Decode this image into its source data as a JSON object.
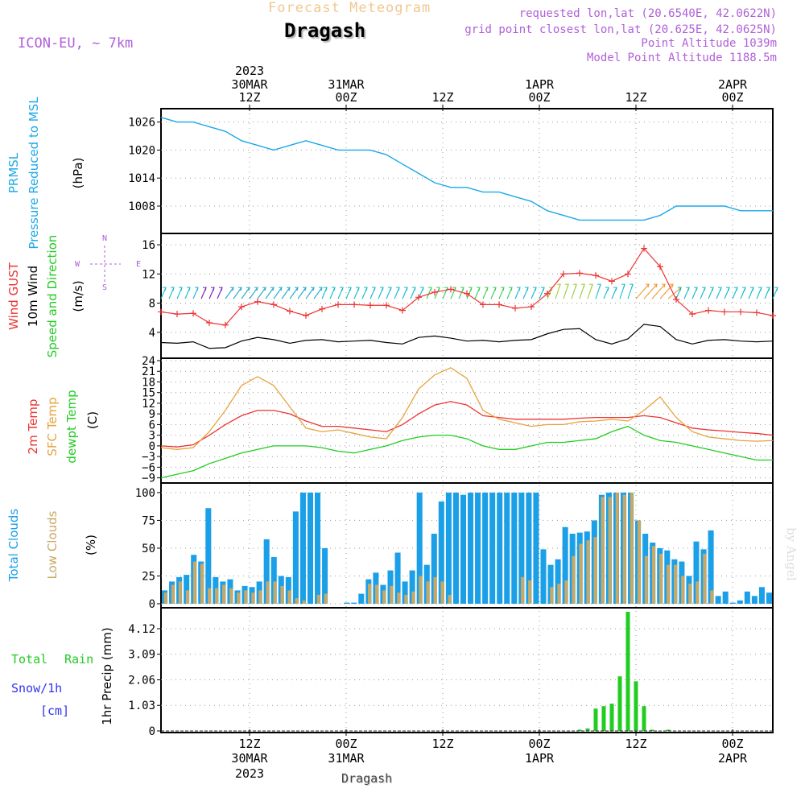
{
  "header": {
    "forecast_title": "Forecast Meteogram",
    "location": "Dragash",
    "model": "ICON-EU, ~ 7km",
    "requested_lonlat": "requested lon,lat (20.6540E, 42.0622N)",
    "grid_lonlat": "grid point closest lon,lat (20.625E, 42.0625N)",
    "point_altitude": "Point Altitude 1039m",
    "model_point_altitude": "Model Point Altitude 1188.5m",
    "bottom_location": "Dragash",
    "watermark": "by Angel"
  },
  "time_axis": {
    "ticks": [
      {
        "hour": 12,
        "label": "12Z",
        "date": "30MAR",
        "year": "2023"
      },
      {
        "hour": 24,
        "label": "00Z",
        "date": "31MAR",
        "year": ""
      },
      {
        "hour": 36,
        "label": "12Z",
        "date": "",
        "year": ""
      },
      {
        "hour": 48,
        "label": "00Z",
        "date": "1APR",
        "year": ""
      },
      {
        "hour": 60,
        "label": "12Z",
        "date": "",
        "year": ""
      },
      {
        "hour": 72,
        "label": "00Z",
        "date": "2APR",
        "year": ""
      }
    ],
    "range_hours": [
      1,
      77
    ]
  },
  "panel_labels": {
    "pressure": [
      "PRMSL",
      "Pressure Reduced to MSL",
      "(hPa)"
    ],
    "wind": [
      "Wind GUST",
      "10m Wind",
      "Speed and Direction",
      "(m/s)"
    ],
    "compass": {
      "n": "N",
      "s": "S",
      "w": "W",
      "e": "E"
    },
    "temp": [
      "2m Temp",
      "SFC Temp",
      "dewpt Temp",
      "(C)"
    ],
    "clouds": [
      "Total Clouds",
      "Low Clouds",
      "(%)"
    ],
    "precip": [
      "1hr Precip (mm)",
      "Total",
      "Rain",
      "Snow/1h",
      "[cm]"
    ]
  },
  "colors": {
    "pressure": "#1ba8e8",
    "gust": "#ee3333",
    "wind10m": "#000000",
    "sfc_temp": "#e6a23c",
    "temp2m": "#ee3333",
    "dewpt": "#22cc22",
    "total_clouds": "#1ba0e8",
    "low_clouds": "#c8a864",
    "rain": "#22cc22",
    "snow": "#3333ee",
    "purple": "#b05fd8"
  },
  "chart_data": [
    {
      "type": "line",
      "panel": "pressure",
      "ylabel": "(hPa)",
      "yticks": [
        1008,
        1014,
        1020,
        1026
      ],
      "ylim": [
        1003,
        1028
      ],
      "series": [
        {
          "name": "Pressure Reduced to MSL",
          "x": [
            1,
            3,
            5,
            7,
            9,
            11,
            13,
            15,
            17,
            19,
            21,
            23,
            25,
            27,
            29,
            31,
            33,
            35,
            37,
            39,
            41,
            43,
            45,
            47,
            49,
            51,
            53,
            55,
            57,
            59,
            61,
            63,
            65,
            67,
            69,
            71,
            73,
            75,
            77
          ],
          "values": [
            1027,
            1026,
            1026,
            1025,
            1024,
            1022,
            1021,
            1020,
            1021,
            1022,
            1021,
            1020,
            1020,
            1020,
            1019,
            1017,
            1015,
            1013,
            1012,
            1012,
            1011,
            1011,
            1010,
            1009,
            1007,
            1006,
            1005,
            1005,
            1005,
            1005,
            1005,
            1006,
            1008,
            1008,
            1008,
            1008,
            1007,
            1007,
            1007
          ]
        }
      ]
    },
    {
      "type": "line",
      "panel": "wind",
      "ylabel": "(m/s)",
      "yticks": [
        4,
        8,
        12,
        16
      ],
      "ylim": [
        1,
        17
      ],
      "series": [
        {
          "name": "Wind GUST",
          "marker": "+",
          "x": [
            1,
            3,
            5,
            7,
            9,
            11,
            13,
            15,
            17,
            19,
            21,
            23,
            25,
            27,
            29,
            31,
            33,
            35,
            37,
            39,
            41,
            43,
            45,
            47,
            49,
            51,
            53,
            55,
            57,
            59,
            61,
            63,
            65,
            67,
            69,
            71,
            73,
            75,
            77
          ],
          "values": [
            6.8,
            6.5,
            6.6,
            5.3,
            5.0,
            7.5,
            8.2,
            7.8,
            6.9,
            6.3,
            7.2,
            7.8,
            7.8,
            7.7,
            7.7,
            7.0,
            8.8,
            9.5,
            9.9,
            9.3,
            7.8,
            7.8,
            7.3,
            7.5,
            9.3,
            12.0,
            12.1,
            11.8,
            11.0,
            12.0,
            15.5,
            13.0,
            8.5,
            6.5,
            7.0,
            6.8,
            6.8,
            6.7,
            6.3
          ]
        },
        {
          "name": "10m Wind",
          "x": [
            1,
            3,
            5,
            7,
            9,
            11,
            13,
            15,
            17,
            19,
            21,
            23,
            25,
            27,
            29,
            31,
            33,
            35,
            37,
            39,
            41,
            43,
            45,
            47,
            49,
            51,
            53,
            55,
            57,
            59,
            61,
            63,
            65,
            67,
            69,
            71,
            73,
            75,
            77
          ],
          "values": [
            2.6,
            2.5,
            2.7,
            1.8,
            1.9,
            2.8,
            3.3,
            3.0,
            2.5,
            2.9,
            3.0,
            2.7,
            2.8,
            2.9,
            2.6,
            2.4,
            3.3,
            3.5,
            3.2,
            2.8,
            2.9,
            2.7,
            2.9,
            3.0,
            3.8,
            4.4,
            4.5,
            3.0,
            2.4,
            3.1,
            5.1,
            4.8,
            3.0,
            2.4,
            2.9,
            3.0,
            2.8,
            2.7,
            2.8
          ]
        }
      ]
    },
    {
      "type": "line",
      "panel": "temperature",
      "ylabel": "(C)",
      "yticks": [
        -9,
        -6,
        -3,
        0,
        3,
        6,
        9,
        12,
        15,
        18,
        21,
        24
      ],
      "ylim": [
        -10,
        24
      ],
      "series": [
        {
          "name": "2m Temp",
          "x": [
            1,
            3,
            5,
            7,
            9,
            11,
            13,
            15,
            17,
            19,
            21,
            23,
            25,
            27,
            29,
            31,
            33,
            35,
            37,
            39,
            41,
            43,
            45,
            47,
            49,
            51,
            53,
            55,
            57,
            59,
            61,
            63,
            65,
            67,
            69,
            71,
            73,
            75,
            77
          ],
          "values": [
            0,
            -0.3,
            0.3,
            3,
            6,
            8.5,
            10,
            10,
            9,
            7,
            5.5,
            5.5,
            5,
            4.5,
            4,
            6,
            9,
            11.5,
            12.5,
            11.5,
            8.5,
            8,
            7.5,
            7.5,
            7.5,
            7.5,
            7.8,
            8,
            8,
            8,
            8.5,
            8,
            6.5,
            5,
            4.5,
            4.2,
            3.8,
            3.5,
            3
          ]
        },
        {
          "name": "SFC Temp",
          "x": [
            1,
            3,
            5,
            7,
            9,
            11,
            13,
            15,
            17,
            19,
            21,
            23,
            25,
            27,
            29,
            31,
            33,
            35,
            37,
            39,
            41,
            43,
            45,
            47,
            49,
            51,
            53,
            55,
            57,
            59,
            61,
            63,
            65,
            67,
            69,
            71,
            73,
            75,
            77
          ],
          "values": [
            -0.5,
            -1,
            -0.5,
            4,
            10,
            17,
            19.5,
            17,
            11,
            5,
            4,
            4.5,
            3.5,
            2.5,
            2,
            8,
            16,
            20,
            22,
            19,
            10,
            7.5,
            6.5,
            5.5,
            6,
            6,
            6.8,
            7,
            7.5,
            7,
            10,
            13.8,
            8,
            4,
            2.5,
            2,
            1.5,
            1.3,
            1.5
          ]
        },
        {
          "name": "dewpt Temp",
          "x": [
            1,
            3,
            5,
            7,
            9,
            11,
            13,
            15,
            17,
            19,
            21,
            23,
            25,
            27,
            29,
            31,
            33,
            35,
            37,
            39,
            41,
            43,
            45,
            47,
            49,
            51,
            53,
            55,
            57,
            59,
            61,
            63,
            65,
            67,
            69,
            71,
            73,
            75,
            77
          ],
          "values": [
            -9,
            -8,
            -7,
            -5,
            -3.5,
            -2,
            -1,
            0,
            0,
            0,
            -0.5,
            -1.5,
            -2,
            -1,
            0,
            1.5,
            2.5,
            3,
            3,
            2,
            0,
            -1,
            -1,
            0,
            1,
            1,
            1.5,
            2,
            4,
            5.5,
            3,
            1.5,
            1,
            0,
            -1,
            -2,
            -3,
            -4,
            -4
          ]
        }
      ]
    },
    {
      "type": "bar",
      "panel": "clouds",
      "ylabel": "(%)",
      "yticks": [
        0,
        25,
        50,
        75,
        100
      ],
      "ylim": [
        0,
        105
      ],
      "x_start_hour": 1,
      "series": [
        {
          "name": "Total Clouds",
          "values": [
            12,
            20,
            24,
            26,
            44,
            38,
            86,
            24,
            20,
            22,
            12,
            16,
            15,
            20,
            58,
            42,
            25,
            24,
            83,
            100,
            100,
            100,
            50,
            0,
            0,
            1,
            1,
            9,
            22,
            28,
            17,
            30,
            46,
            20,
            30,
            100,
            35,
            63,
            92,
            100,
            100,
            98,
            100,
            100,
            100,
            100,
            100,
            100,
            100,
            100,
            100,
            100,
            49,
            35,
            40,
            69,
            63,
            64,
            65,
            75,
            98,
            100,
            100,
            100,
            100,
            75,
            63,
            55,
            50,
            48,
            40,
            38,
            25,
            56,
            49,
            66,
            7,
            11,
            1,
            3,
            11,
            7,
            15,
            10
          ]
        },
        {
          "name": "Low Clouds",
          "values": [
            10,
            17,
            20,
            12,
            38,
            36,
            14,
            14,
            17,
            14,
            10,
            12,
            10,
            12,
            20,
            20,
            16,
            12,
            5,
            3,
            0,
            8,
            9,
            0,
            0,
            0,
            0,
            0,
            18,
            17,
            12,
            16,
            10,
            8,
            11,
            25,
            20,
            24,
            20,
            8,
            0,
            0,
            0,
            0,
            0,
            0,
            0,
            0,
            0,
            24,
            21,
            0,
            0,
            15,
            18,
            21,
            43,
            54,
            57,
            60,
            96,
            96,
            100,
            98,
            100,
            75,
            43,
            52,
            45,
            35,
            35,
            25,
            18,
            20,
            45,
            12,
            0,
            0,
            0,
            0,
            0,
            0,
            0,
            0
          ]
        }
      ]
    },
    {
      "type": "bar",
      "panel": "precip",
      "ylabel": "1hr Precip (mm)",
      "yticks": [
        0,
        1.03,
        2.06,
        3.09,
        4.12
      ],
      "ylim": [
        0,
        4.8
      ],
      "series": [
        {
          "name": "Rain",
          "x": [
            53,
            54,
            55,
            56,
            57,
            58,
            59,
            60,
            61,
            62,
            63,
            64,
            65,
            66,
            67,
            68,
            69,
            70,
            71
          ],
          "values": [
            0.05,
            0.1,
            0.9,
            1.0,
            1.1,
            2.2,
            4.8,
            2.0,
            1.0,
            0.05,
            0.0,
            0.05,
            0,
            0,
            0,
            0,
            0,
            0,
            0
          ]
        }
      ]
    }
  ]
}
